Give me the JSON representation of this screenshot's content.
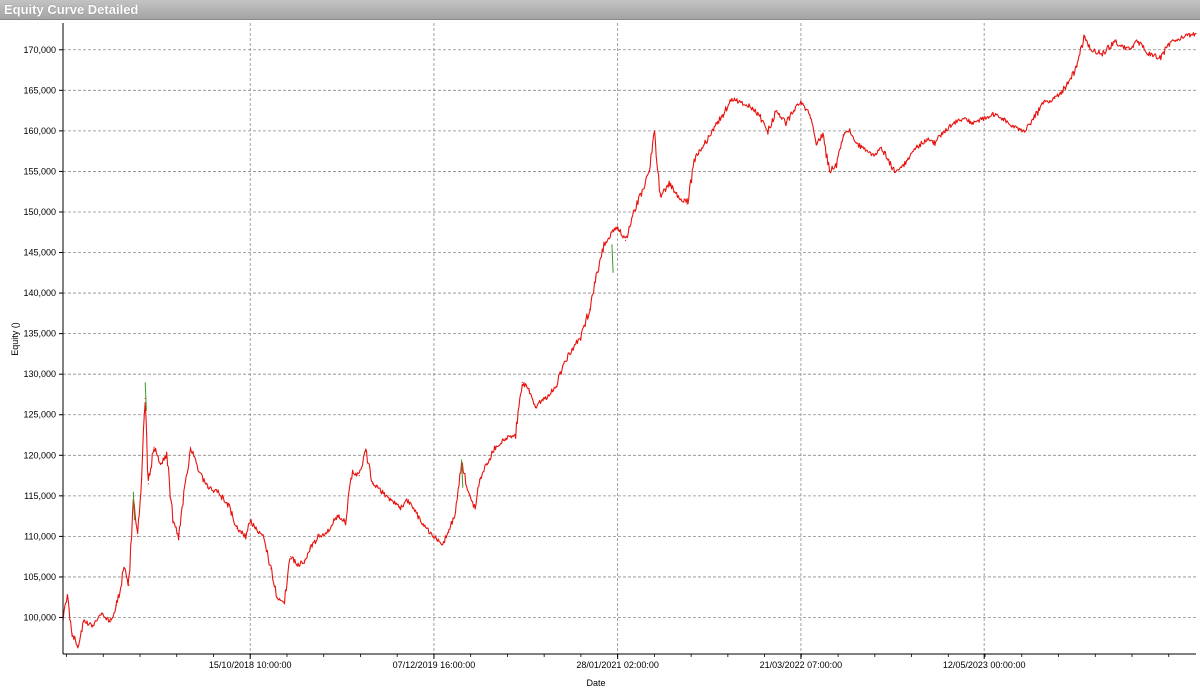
{
  "window": {
    "title": "Equity Curve Detailed"
  },
  "chart_data": {
    "type": "line",
    "title": "",
    "xlabel": "Date",
    "ylabel": "Equity ()",
    "xlim": [
      "2017-08-15",
      "2024-09-05"
    ],
    "ylim": [
      95500,
      173300
    ],
    "grid": true,
    "x_ticks": [
      {
        "date": "2018-10-15",
        "label": "15/10/2018 10:00:00"
      },
      {
        "date": "2019-12-07",
        "label": "07/12/2019 16:00:00"
      },
      {
        "date": "2021-01-28",
        "label": "28/01/2021 02:00:00"
      },
      {
        "date": "2022-03-21",
        "label": "21/03/2022 07:00:00"
      },
      {
        "date": "2023-05-12",
        "label": "12/05/2023 00:00:00"
      }
    ],
    "y_ticks": [
      {
        "value": 100000,
        "label": "100,000"
      },
      {
        "value": 105000,
        "label": "105,000"
      },
      {
        "value": 110000,
        "label": "110,000"
      },
      {
        "value": 115000,
        "label": "115,000"
      },
      {
        "value": 120000,
        "label": "120,000"
      },
      {
        "value": 125000,
        "label": "125,000"
      },
      {
        "value": 130000,
        "label": "130,000"
      },
      {
        "value": 135000,
        "label": "135,000"
      },
      {
        "value": 140000,
        "label": "140,000"
      },
      {
        "value": 145000,
        "label": "145,000"
      },
      {
        "value": 150000,
        "label": "150,000"
      },
      {
        "value": 155000,
        "label": "155,000"
      },
      {
        "value": 160000,
        "label": "160,000"
      },
      {
        "value": 165000,
        "label": "165,000"
      },
      {
        "value": 170000,
        "label": "170,000"
      }
    ],
    "colors": {
      "line": "#e8130e",
      "up_highlight": "#3a9a2c"
    },
    "series": [
      {
        "points": [
          [
            "2017-08-15",
            100000
          ],
          [
            "2017-08-25",
            102500
          ],
          [
            "2017-09-05",
            98000
          ],
          [
            "2017-09-18",
            96500
          ],
          [
            "2017-10-01",
            99500
          ],
          [
            "2017-10-20",
            99000
          ],
          [
            "2017-11-10",
            100500
          ],
          [
            "2017-12-01",
            99500
          ],
          [
            "2017-12-15",
            101500
          ],
          [
            "2018-01-01",
            106000
          ],
          [
            "2018-01-12",
            104000
          ],
          [
            "2018-01-22",
            115000
          ],
          [
            "2018-02-01",
            110000
          ],
          [
            "2018-02-10",
            117000
          ],
          [
            "2018-02-18",
            127000
          ],
          [
            "2018-02-25",
            116500
          ],
          [
            "2018-03-10",
            121000
          ],
          [
            "2018-03-25",
            119000
          ],
          [
            "2018-04-08",
            120000
          ],
          [
            "2018-04-22",
            112000
          ],
          [
            "2018-05-05",
            110000
          ],
          [
            "2018-05-15",
            114500
          ],
          [
            "2018-06-01",
            121000
          ],
          [
            "2018-06-20",
            118000
          ],
          [
            "2018-07-10",
            116000
          ],
          [
            "2018-08-01",
            115500
          ],
          [
            "2018-08-25",
            114000
          ],
          [
            "2018-09-15",
            111000
          ],
          [
            "2018-10-05",
            110000
          ],
          [
            "2018-10-15",
            112000
          ],
          [
            "2018-11-01",
            110500
          ],
          [
            "2018-11-15",
            110000
          ],
          [
            "2018-12-01",
            106000
          ],
          [
            "2018-12-15",
            102500
          ],
          [
            "2019-01-01",
            102000
          ],
          [
            "2019-01-15",
            107500
          ],
          [
            "2019-02-01",
            106500
          ],
          [
            "2019-02-15",
            107000
          ],
          [
            "2019-03-01",
            108500
          ],
          [
            "2019-03-20",
            110000
          ],
          [
            "2019-04-10",
            110500
          ],
          [
            "2019-05-01",
            112500
          ],
          [
            "2019-05-20",
            112000
          ],
          [
            "2019-06-05",
            118000
          ],
          [
            "2019-06-20",
            117500
          ],
          [
            "2019-07-05",
            120500
          ],
          [
            "2019-07-20",
            116500
          ],
          [
            "2019-08-10",
            115500
          ],
          [
            "2019-09-01",
            114500
          ],
          [
            "2019-09-20",
            113500
          ],
          [
            "2019-10-10",
            114500
          ],
          [
            "2019-11-01",
            112500
          ],
          [
            "2019-11-20",
            111000
          ],
          [
            "2019-12-07",
            110000
          ],
          [
            "2019-12-25",
            109000
          ],
          [
            "2020-01-10",
            110500
          ],
          [
            "2020-01-25",
            113000
          ],
          [
            "2020-02-08",
            119000
          ],
          [
            "2020-02-25",
            115000
          ],
          [
            "2020-03-10",
            113500
          ],
          [
            "2020-03-20",
            117000
          ],
          [
            "2020-04-05",
            119000
          ],
          [
            "2020-04-25",
            121000
          ],
          [
            "2020-05-15",
            122000
          ],
          [
            "2020-06-10",
            122500
          ],
          [
            "2020-06-25",
            129000
          ],
          [
            "2020-07-10",
            128000
          ],
          [
            "2020-07-25",
            126000
          ],
          [
            "2020-08-15",
            127000
          ],
          [
            "2020-09-10",
            128500
          ],
          [
            "2020-09-25",
            131000
          ],
          [
            "2020-10-15",
            133000
          ],
          [
            "2020-11-05",
            134500
          ],
          [
            "2020-11-25",
            138000
          ],
          [
            "2020-12-10",
            142000
          ],
          [
            "2020-12-28",
            146000
          ],
          [
            "2021-01-15",
            147500
          ],
          [
            "2021-01-28",
            148000
          ],
          [
            "2021-02-15",
            146500
          ],
          [
            "2021-03-05",
            150000
          ],
          [
            "2021-03-25",
            152500
          ],
          [
            "2021-04-10",
            155000
          ],
          [
            "2021-04-22",
            160000
          ],
          [
            "2021-05-05",
            152000
          ],
          [
            "2021-05-25",
            153500
          ],
          [
            "2021-06-15",
            152000
          ],
          [
            "2021-07-05",
            151000
          ],
          [
            "2021-07-25",
            157000
          ],
          [
            "2021-08-15",
            158500
          ],
          [
            "2021-09-05",
            160500
          ],
          [
            "2021-09-25",
            162000
          ],
          [
            "2021-10-15",
            164000
          ],
          [
            "2021-11-05",
            163500
          ],
          [
            "2021-11-25",
            163000
          ],
          [
            "2021-12-15",
            162000
          ],
          [
            "2022-01-05",
            160000
          ],
          [
            "2022-01-25",
            162500
          ],
          [
            "2022-02-15",
            161000
          ],
          [
            "2022-03-05",
            162500
          ],
          [
            "2022-03-21",
            163500
          ],
          [
            "2022-04-10",
            162000
          ],
          [
            "2022-04-25",
            158500
          ],
          [
            "2022-05-10",
            159500
          ],
          [
            "2022-05-25",
            155000
          ],
          [
            "2022-06-10",
            156000
          ],
          [
            "2022-06-25",
            159500
          ],
          [
            "2022-07-10",
            160000
          ],
          [
            "2022-07-25",
            158500
          ],
          [
            "2022-08-15",
            157500
          ],
          [
            "2022-09-05",
            157000
          ],
          [
            "2022-09-20",
            158000
          ],
          [
            "2022-10-05",
            156500
          ],
          [
            "2022-10-20",
            155000
          ],
          [
            "2022-11-05",
            155500
          ],
          [
            "2022-11-20",
            156500
          ],
          [
            "2022-12-10",
            158000
          ],
          [
            "2023-01-01",
            159000
          ],
          [
            "2023-01-20",
            158500
          ],
          [
            "2023-02-10",
            160000
          ],
          [
            "2023-03-05",
            161000
          ],
          [
            "2023-03-25",
            161500
          ],
          [
            "2023-04-15",
            161000
          ],
          [
            "2023-05-12",
            161500
          ],
          [
            "2023-06-01",
            162000
          ],
          [
            "2023-06-25",
            161500
          ],
          [
            "2023-07-15",
            160500
          ],
          [
            "2023-08-10",
            160000
          ],
          [
            "2023-09-01",
            161500
          ],
          [
            "2023-09-25",
            163500
          ],
          [
            "2023-10-20",
            164000
          ],
          [
            "2023-11-15",
            165500
          ],
          [
            "2023-12-10",
            168000
          ],
          [
            "2023-12-25",
            171500
          ],
          [
            "2024-01-10",
            170000
          ],
          [
            "2024-02-05",
            169500
          ],
          [
            "2024-03-05",
            171000
          ],
          [
            "2024-04-01",
            170000
          ],
          [
            "2024-04-25",
            171000
          ],
          [
            "2024-05-20",
            169500
          ],
          [
            "2024-06-15",
            169000
          ],
          [
            "2024-07-10",
            171000
          ],
          [
            "2024-08-05",
            171500
          ],
          [
            "2024-09-05",
            172000
          ]
        ]
      }
    ]
  }
}
